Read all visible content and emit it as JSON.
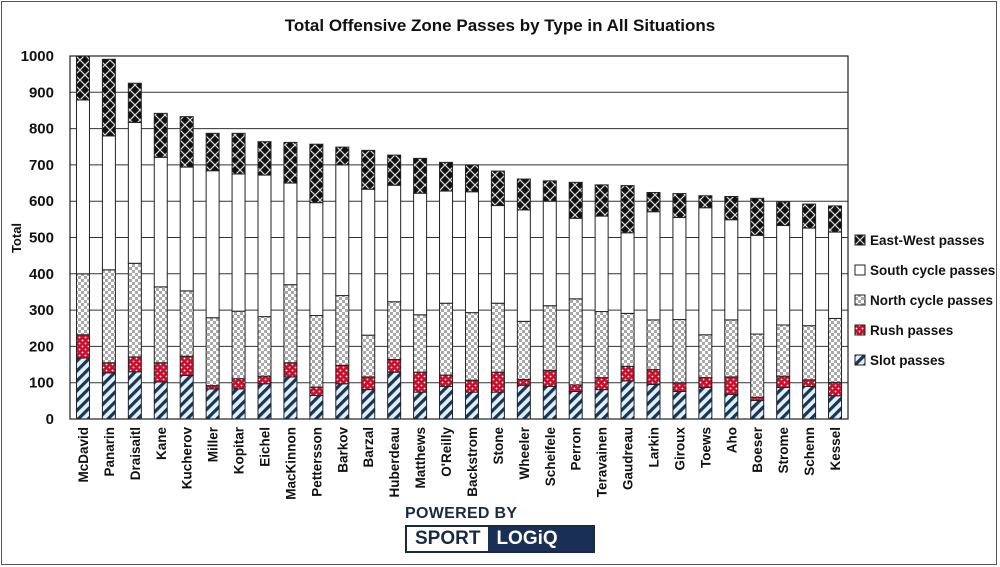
{
  "chart_data": {
    "type": "bar",
    "stacked": true,
    "title": "Total Offensive Zone Passes by Type in All Situations",
    "xlabel": "",
    "ylabel": "Total",
    "ylim": [
      0,
      1000
    ],
    "yticks": [
      0,
      100,
      200,
      300,
      400,
      500,
      600,
      700,
      800,
      900,
      1000
    ],
    "grid": true,
    "legend_position": "right",
    "categories": [
      "McDavid",
      "Panarin",
      "Draisaitl",
      "Kane",
      "Kucherov",
      "Miller",
      "Kopitar",
      "Eichel",
      "MacKinnon",
      "Pettersson",
      "Barkov",
      "Barzal",
      "Huberdeau",
      "Matthews",
      "O'Reilly",
      "Backstrom",
      "Stone",
      "Wheeler",
      "Scheifele",
      "Perron",
      "Teravainen",
      "Gaudreau",
      "Larkin",
      "Giroux",
      "Toews",
      "Aho",
      "Boeser",
      "Strome",
      "Schenn",
      "Kessel"
    ],
    "series": [
      {
        "name": "Slot passes",
        "pattern": "slot",
        "color": "#1c3557",
        "values": [
          168,
          127,
          130,
          102,
          120,
          83,
          83,
          97,
          116,
          65,
          97,
          81,
          129,
          74,
          90,
          74,
          74,
          93,
          90,
          76,
          81,
          105,
          95,
          76,
          87,
          68,
          51,
          87,
          90,
          64
        ]
      },
      {
        "name": "Rush passes",
        "pattern": "rush",
        "color": "#c8102e",
        "values": [
          64,
          28,
          41,
          53,
          53,
          9,
          28,
          21,
          39,
          23,
          51,
          35,
          35,
          55,
          31,
          33,
          55,
          16,
          44,
          18,
          33,
          40,
          41,
          24,
          27,
          48,
          9,
          31,
          18,
          37
        ]
      },
      {
        "name": "North cycle passes",
        "pattern": "north",
        "color": "#a9a9a9",
        "values": [
          168,
          256,
          258,
          209,
          180,
          187,
          186,
          164,
          215,
          197,
          192,
          115,
          159,
          158,
          198,
          186,
          190,
          160,
          178,
          237,
          182,
          146,
          137,
          174,
          118,
          157,
          174,
          141,
          149,
          176
        ]
      },
      {
        "name": "South cycle passes",
        "pattern": "south",
        "color": "#ffffff",
        "values": [
          479,
          369,
          388,
          357,
          341,
          405,
          378,
          390,
          280,
          311,
          360,
          402,
          321,
          335,
          309,
          333,
          269,
          307,
          288,
          222,
          263,
          222,
          298,
          281,
          350,
          276,
          272,
          274,
          269,
          238
        ]
      },
      {
        "name": "East-West passes",
        "pattern": "eastwest",
        "color": "#111111",
        "values": [
          121,
          211,
          108,
          121,
          139,
          103,
          112,
          92,
          112,
          161,
          49,
          107,
          83,
          96,
          79,
          74,
          95,
          85,
          56,
          99,
          86,
          130,
          53,
          66,
          33,
          64,
          102,
          65,
          66,
          72
        ]
      }
    ],
    "legend_order": [
      "East-West passes",
      "South cycle passes",
      "North cycle passes",
      "Rush passes",
      "Slot passes"
    ]
  },
  "branding": {
    "powered_by": "POWERED BY",
    "sport": "SPORT",
    "logiq": "LOGiQ"
  }
}
